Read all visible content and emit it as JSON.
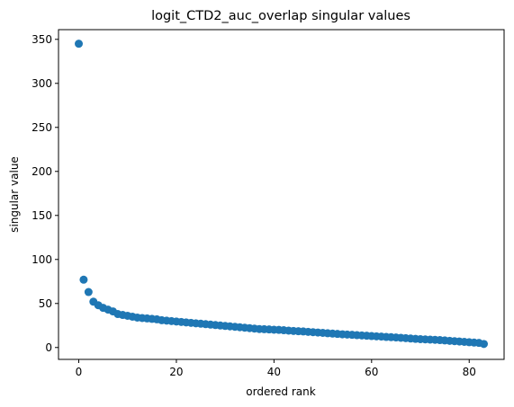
{
  "chart_data": {
    "type": "scatter",
    "title": "logit_CTD2_auc_overlap singular values",
    "xlabel": "ordered rank",
    "ylabel": "singular value",
    "xlim": [
      -4.15,
      87.15
    ],
    "ylim": [
      -13.5,
      361.0
    ],
    "xticks": [
      0,
      20,
      40,
      60,
      80
    ],
    "yticks": [
      0,
      50,
      100,
      150,
      200,
      250,
      300,
      350
    ],
    "grid": false,
    "legend": "none",
    "marker_color": "#1f77b4",
    "x": [
      0,
      1,
      2,
      3,
      4,
      5,
      6,
      7,
      8,
      9,
      10,
      11,
      12,
      13,
      14,
      15,
      16,
      17,
      18,
      19,
      20,
      21,
      22,
      23,
      24,
      25,
      26,
      27,
      28,
      29,
      30,
      31,
      32,
      33,
      34,
      35,
      36,
      37,
      38,
      39,
      40,
      41,
      42,
      43,
      44,
      45,
      46,
      47,
      48,
      49,
      50,
      51,
      52,
      53,
      54,
      55,
      56,
      57,
      58,
      59,
      60,
      61,
      62,
      63,
      64,
      65,
      66,
      67,
      68,
      69,
      70,
      71,
      72,
      73,
      74,
      75,
      76,
      77,
      78,
      79,
      80,
      81,
      82,
      83
    ],
    "y": [
      345,
      77,
      63,
      52,
      48,
      45,
      43,
      41,
      38,
      37,
      36,
      35,
      34,
      33.5,
      33,
      32.5,
      32,
      31,
      30.5,
      30,
      29.5,
      29,
      28.5,
      28,
      27.5,
      27,
      26.5,
      26,
      25.5,
      25,
      24.5,
      24,
      23.5,
      23,
      22.5,
      22,
      21.5,
      21,
      20.8,
      20.5,
      20.2,
      20,
      19.6,
      19.2,
      18.8,
      18.5,
      18.2,
      17.8,
      17.4,
      17,
      16.6,
      16.2,
      15.8,
      15.4,
      15,
      14.7,
      14.4,
      14,
      13.7,
      13.4,
      13,
      12.7,
      12.4,
      12,
      11.7,
      11.4,
      11,
      10.6,
      10.2,
      9.8,
      9.5,
      9.2,
      9,
      8.7,
      8.4,
      8,
      7.6,
      7.2,
      6.8,
      6.4,
      6,
      5.6,
      5.2,
      4
    ]
  }
}
